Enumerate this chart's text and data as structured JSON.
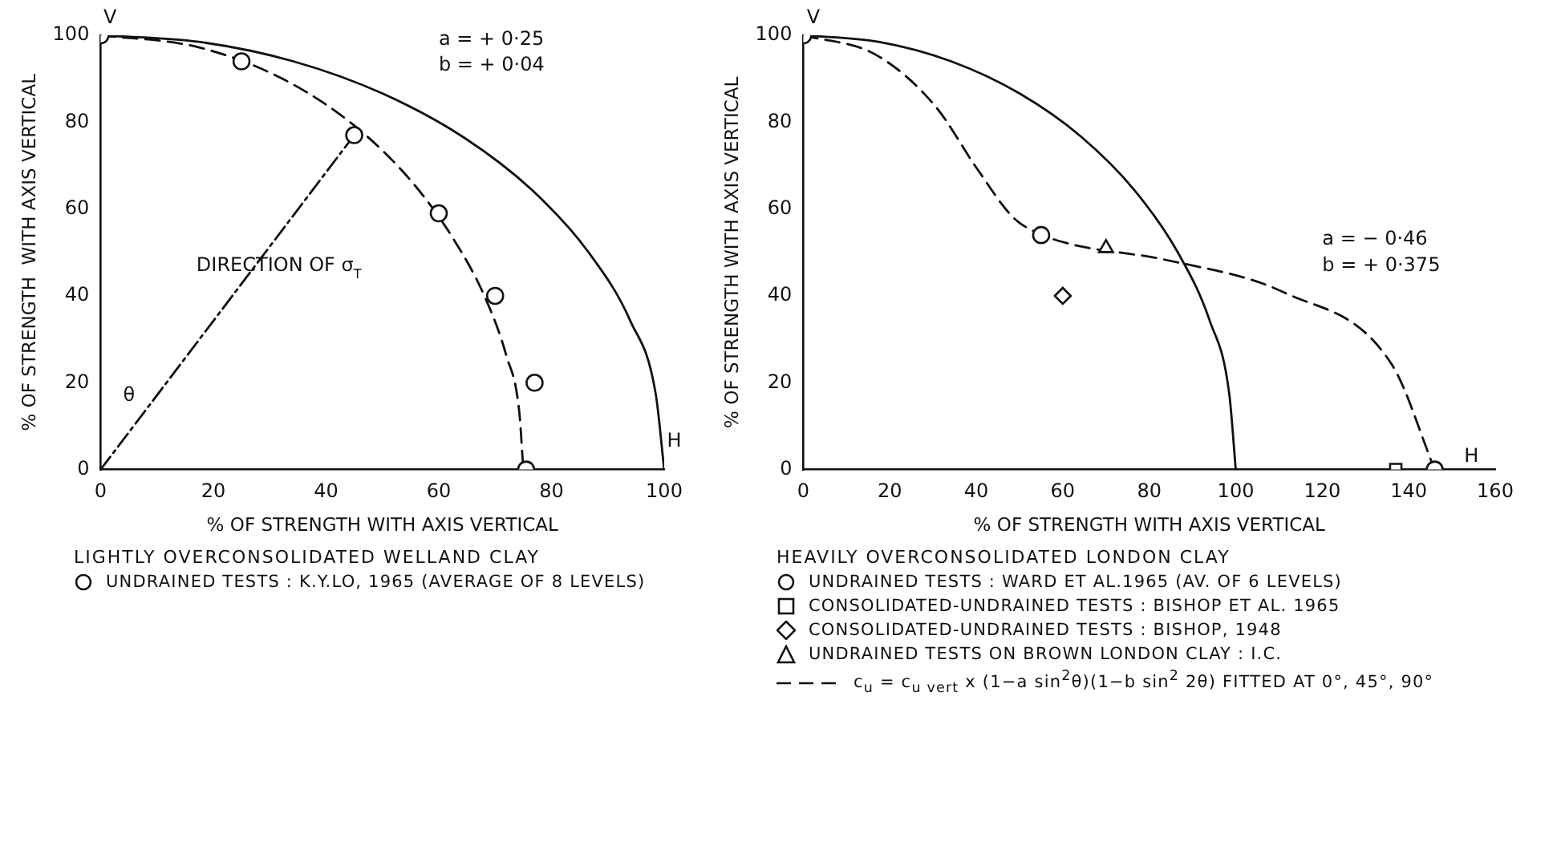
{
  "chart_data": [
    {
      "type": "scatter",
      "title": "LIGHTLY OVERCONSOLIDATED WELLAND CLAY",
      "xlabel": "% OF STRENGTH WITH AXIS VERTICAL",
      "ylabel": "% OF STRENGTH  WITH AXIS VERTICAL",
      "xlim": [
        0,
        100
      ],
      "ylim": [
        0,
        100
      ],
      "xticks": [
        0,
        20,
        40,
        60,
        80,
        100
      ],
      "yticks": [
        0,
        20,
        40,
        60,
        80,
        100
      ],
      "grid": false,
      "legend": "bottom",
      "series": [
        {
          "name": "UNDRAINED TESTS : K.Y.LO, 1965 (AVERAGE OF 8 LEVELS)",
          "type": "scatter",
          "marker": "circle",
          "color": "#111111",
          "x": [
            0,
            25,
            45,
            60,
            70,
            77,
            75.5
          ],
          "values": [
            100,
            94,
            77,
            59,
            40,
            20,
            0
          ]
        },
        {
          "type": "line",
          "marker": "none",
          "line_style": "dashed",
          "color": "#111111",
          "x": [
            0,
            17.2,
            32.7,
            45.5,
            55.4,
            62.8,
            68.3,
            72.0,
            74.3,
            75
          ],
          "values": [
            100,
            97.3,
            89.7,
            78.7,
            66.0,
            52.7,
            39.4,
            26.2,
            13.1,
            0
          ]
        },
        {
          "type": "line",
          "marker": "none",
          "line_style": "solid",
          "color": "#111111",
          "x": [
            0,
            17.4,
            34.2,
            50,
            64.3,
            76.6,
            86.6,
            94.0,
            98.5,
            100
          ],
          "values": [
            100,
            98.5,
            94.0,
            86.6,
            76.6,
            64.3,
            50,
            34.2,
            17.4,
            0
          ]
        },
        {
          "type": "line",
          "marker": "none",
          "line_style": "dotted",
          "color": "#111111",
          "x": [
            0,
            45
          ],
          "values": [
            0,
            77
          ]
        }
      ],
      "annotations": [
        "V",
        "H",
        "a = + 0·25",
        "b = + 0·04",
        "DIRECTION OF σ$_{T}$",
        "θ"
      ]
    },
    {
      "type": "scatter",
      "title": "HEAVILY OVERCONSOLIDATED LONDON CLAY",
      "xlabel": "% OF STRENGTH WITH AXIS VERTICAL",
      "ylabel": "% OF STRENGTH WITH AXIS VERTICAL",
      "xlim": [
        0,
        160
      ],
      "ylim": [
        0,
        100
      ],
      "xticks": [
        0,
        20,
        40,
        60,
        80,
        100,
        120,
        140,
        160
      ],
      "yticks": [
        0,
        20,
        40,
        60,
        80,
        100
      ],
      "grid": false,
      "legend": "bottom",
      "series": [
        {
          "name": "UNDRAINED TESTS : WARD ET AL.1965 (AV. OF 6 LEVELS)",
          "type": "scatter",
          "marker": "circle",
          "color": "#111111",
          "x": [
            0,
            55,
            146
          ],
          "values": [
            100,
            54,
            0
          ]
        },
        {
          "name": "CONSOLIDATED-UNDRAINED TESTS : BISHOP ET AL. 1965",
          "type": "scatter",
          "marker": "square",
          "color": "#111111",
          "x": [
            137
          ],
          "values": [
            0
          ]
        },
        {
          "name": "CONSOLIDATED-UNDRAINED TESTS : BISHOP, 1948",
          "type": "scatter",
          "marker": "diamond",
          "color": "#111111",
          "x": [
            60
          ],
          "values": [
            40
          ]
        },
        {
          "name": "UNDRAINED TESTS ON BROWN LONDON CLAY : I.C.",
          "type": "scatter",
          "marker": "triangle",
          "color": "#111111",
          "x": [
            70
          ],
          "values": [
            51
          ]
        },
        {
          "type": "line",
          "marker": "none",
          "line_style": "solid",
          "color": "#111111",
          "x": [
            0,
            17.4,
            34.2,
            50,
            64.3,
            76.6,
            86.6,
            94.0,
            98.5,
            100
          ],
          "values": [
            100,
            98.5,
            94.0,
            86.6,
            76.6,
            64.3,
            50,
            34.2,
            17.4,
            0
          ]
        },
        {
          "name": "c$_{u}$ = c$_{u vert}$ x (1−a sin$^{2}$θ)(1−b sin$^{2}$ 2θ)    FITTED AT 0°, 45°, 90°",
          "type": "line",
          "marker": "none",
          "line_style": "dashed",
          "color": "#111111",
          "x": [
            0,
            16.8,
            30.5,
            40.1,
            48.6,
            54.4,
            61.9,
            83.7,
            111.6,
            136.2,
            146
          ],
          "values": [
            100,
            95.5,
            83.7,
            69.4,
            58.0,
            54.4,
            51.9,
            48.3,
            40.6,
            24.0,
            0
          ]
        }
      ],
      "annotations": [
        "V",
        "H",
        "a = − 0·46",
        "b = + 0·375"
      ]
    }
  ]
}
